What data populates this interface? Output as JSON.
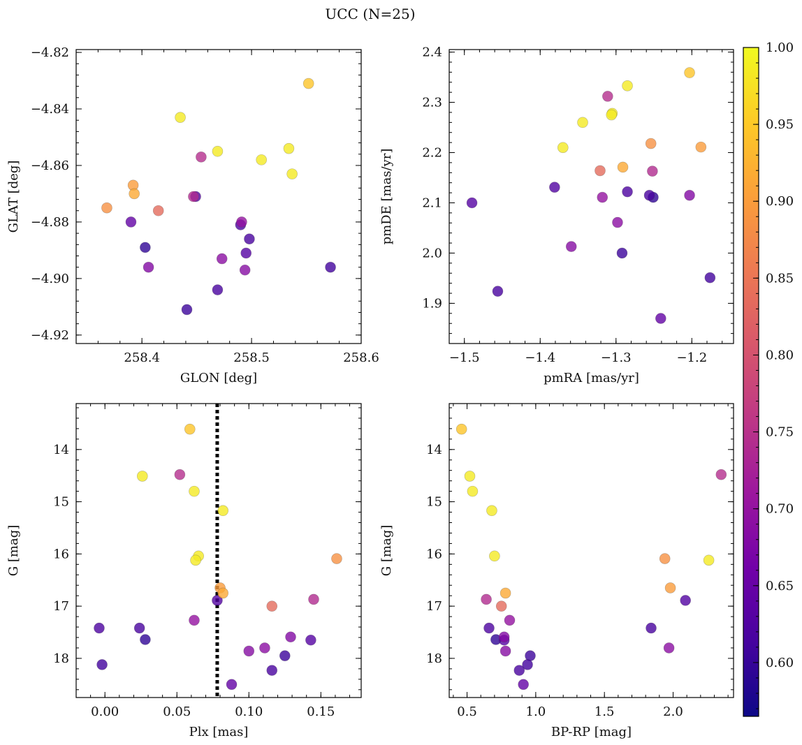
{
  "figure": {
    "title": "UCC (N=25)"
  },
  "colormap": [
    "#0d0887",
    "#46039f",
    "#7201a8",
    "#9c179e",
    "#bd3786",
    "#d8576b",
    "#ed7953",
    "#fb9f3a",
    "#fdca26",
    "#f0f921"
  ],
  "colorbar": {
    "min": 0.565,
    "max": 1.0,
    "ticks": [
      0.6,
      0.65,
      0.7,
      0.75,
      0.8,
      0.85,
      0.9,
      0.95,
      1.0
    ],
    "tick_labels": [
      "0.60",
      "0.65",
      "0.70",
      "0.75",
      "0.80",
      "0.85",
      "0.90",
      "0.95",
      "1.00"
    ]
  },
  "chart_data": [
    {
      "type": "scatter",
      "xlabel": "GLON [deg]",
      "ylabel": "GLAT [deg]",
      "xlim": [
        258.34,
        258.6
      ],
      "ylim": [
        -4.923,
        -4.819
      ],
      "xticks": [
        258.4,
        258.5,
        258.6
      ],
      "xtick_labels": [
        "258.4",
        "258.5",
        "258.6"
      ],
      "yticks": [
        -4.92,
        -4.9,
        -4.88,
        -4.86,
        -4.84,
        -4.82
      ],
      "ytick_labels": [
        "−4.92",
        "−4.90",
        "−4.88",
        "−4.86",
        "−4.84",
        "−4.82"
      ],
      "x": [
        258.552,
        258.435,
        258.454,
        258.469,
        258.509,
        258.534,
        258.537,
        258.368,
        258.392,
        258.393,
        258.447,
        258.449,
        258.415,
        258.491,
        258.49,
        258.498,
        258.403,
        258.406,
        258.495,
        258.473,
        258.494,
        258.441,
        258.469,
        258.572,
        258.39
      ],
      "y": [
        -4.831,
        -4.843,
        -4.857,
        -4.855,
        -4.858,
        -4.854,
        -4.863,
        -4.875,
        -4.867,
        -4.87,
        -4.871,
        -4.871,
        -4.876,
        -4.88,
        -4.881,
        -4.886,
        -4.889,
        -4.896,
        -4.891,
        -4.893,
        -4.897,
        -4.911,
        -4.904,
        -4.896,
        -4.88
      ]
    },
    {
      "type": "scatter",
      "xlabel": "pmRA [mas/yr]",
      "ylabel": "pmDE [mas/yr]",
      "xlim": [
        -1.52,
        -1.145
      ],
      "ylim": [
        1.82,
        2.405
      ],
      "xticks": [
        -1.5,
        -1.4,
        -1.3,
        -1.2
      ],
      "xtick_labels": [
        "−1.5",
        "−1.4",
        "−1.3",
        "−1.2"
      ],
      "yticks": [
        1.9,
        2.0,
        2.1,
        2.2,
        2.3,
        2.4
      ],
      "ytick_labels": [
        "1.9",
        "2.0",
        "2.1",
        "2.2",
        "2.3",
        "2.4"
      ],
      "x": [
        -1.203,
        -1.285,
        -1.311,
        -1.305,
        -1.306,
        -1.344,
        -1.37,
        -1.254,
        -1.188,
        -1.291,
        -1.252,
        -1.381,
        -1.321,
        -1.318,
        -1.285,
        -1.256,
        -1.251,
        -1.203,
        -1.49,
        -1.298,
        -1.359,
        -1.292,
        -1.456,
        -1.176,
        -1.241
      ],
      "y": [
        2.359,
        2.333,
        2.312,
        2.278,
        2.275,
        2.26,
        2.21,
        2.218,
        2.211,
        2.171,
        2.163,
        2.131,
        2.164,
        2.111,
        2.122,
        2.115,
        2.111,
        2.115,
        2.1,
        2.061,
        2.013,
        2.0,
        1.924,
        1.951,
        1.87
      ]
    },
    {
      "type": "scatter",
      "xlabel": "Plx [mas]",
      "ylabel": "G [mag]",
      "xlim": [
        -0.02,
        0.178
      ],
      "ylim": [
        18.75,
        13.12
      ],
      "y_inverted": true,
      "xticks": [
        0.0,
        0.05,
        0.1,
        0.15
      ],
      "xtick_labels": [
        "0.00",
        "0.05",
        "0.10",
        "0.15"
      ],
      "yticks": [
        14,
        15,
        16,
        17,
        18
      ],
      "ytick_labels": [
        "14",
        "15",
        "16",
        "17",
        "18"
      ],
      "vline": 0.078,
      "x": [
        0.059,
        0.026,
        0.052,
        0.062,
        0.082,
        0.065,
        0.063,
        0.161,
        0.08,
        0.082,
        0.145,
        0.078,
        0.116,
        0.062,
        -0.004,
        0.024,
        0.028,
        0.129,
        0.143,
        0.111,
        0.1,
        0.125,
        0.116,
        -0.002,
        0.088
      ],
      "y": [
        13.61,
        14.51,
        14.48,
        14.8,
        15.17,
        16.04,
        16.12,
        16.09,
        16.65,
        16.75,
        16.87,
        16.89,
        17.0,
        17.27,
        17.42,
        17.42,
        17.64,
        17.59,
        17.65,
        17.8,
        17.86,
        17.95,
        18.23,
        18.12,
        18.5
      ]
    },
    {
      "type": "scatter",
      "xlabel": "BP-RP [mag]",
      "ylabel": "G [mag]",
      "xlim": [
        0.37,
        2.44
      ],
      "ylim": [
        18.75,
        13.12
      ],
      "y_inverted": true,
      "xticks": [
        0.5,
        1.0,
        1.5,
        2.0
      ],
      "xtick_labels": [
        "0.5",
        "1.0",
        "1.5",
        "2.0"
      ],
      "yticks": [
        14,
        15,
        16,
        17,
        18
      ],
      "ytick_labels": [
        "14",
        "15",
        "16",
        "17",
        "18"
      ],
      "x": [
        0.46,
        0.52,
        2.35,
        0.54,
        0.68,
        0.7,
        2.26,
        1.94,
        1.98,
        0.78,
        0.64,
        2.09,
        0.75,
        0.81,
        0.66,
        1.84,
        0.71,
        0.77,
        0.77,
        1.97,
        0.78,
        0.96,
        0.88,
        0.94,
        0.91
      ],
      "y": [
        13.61,
        14.51,
        14.48,
        14.8,
        15.17,
        16.04,
        16.12,
        16.09,
        16.65,
        16.75,
        16.87,
        16.89,
        17.0,
        17.27,
        17.42,
        17.42,
        17.64,
        17.59,
        17.65,
        17.8,
        17.86,
        17.95,
        18.23,
        18.12,
        18.5
      ]
    }
  ],
  "membership_probability": [
    0.945,
    0.985,
    0.745,
    0.985,
    0.985,
    0.985,
    0.985,
    0.885,
    0.9,
    0.915,
    0.74,
    0.625,
    0.835,
    0.7,
    0.62,
    0.615,
    0.595,
    0.68,
    0.63,
    0.69,
    0.685,
    0.605,
    0.615,
    0.61,
    0.645
  ]
}
